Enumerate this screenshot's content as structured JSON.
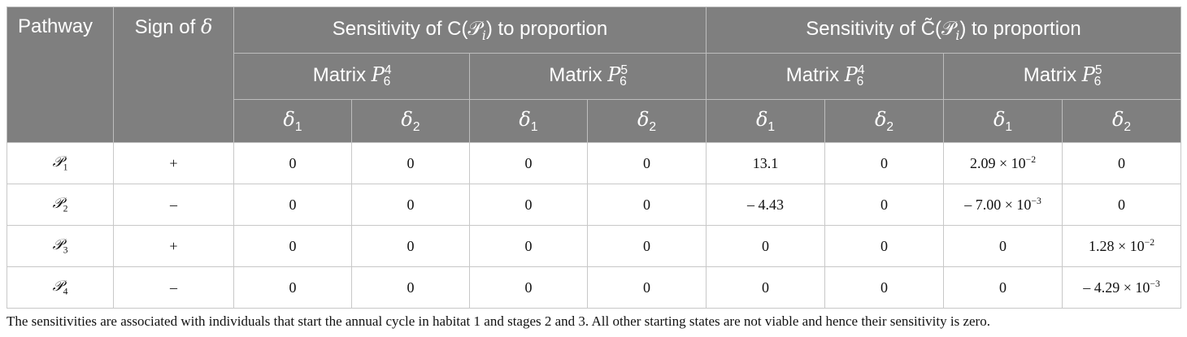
{
  "header": {
    "pathway": "Pathway",
    "sign_of": "Sign of",
    "sign_symbol": "δ",
    "sens_prefix": "Sensitivity of ",
    "sens_c": "C",
    "sens_c_tilde": "C̃",
    "sens_arg": "(𝒫",
    "sens_arg_sub": "i",
    "sens_suffix": ") to proportion",
    "matrix_word": "Matrix ",
    "matrix_p": "P",
    "matrix_sub": "6",
    "matrix_sup_a": "4",
    "matrix_sup_b": "5",
    "delta": "δ",
    "delta_sub_1": "1",
    "delta_sub_2": "2"
  },
  "rows": [
    {
      "p": "𝒫",
      "sub": "1",
      "sign": "+",
      "v": [
        "0",
        "0",
        "0",
        "0",
        "13.1",
        "0",
        "2.09 × 10",
        "0"
      ],
      "exp": [
        "",
        "",
        "",
        "",
        "",
        "",
        "−2",
        ""
      ]
    },
    {
      "p": "𝒫",
      "sub": "2",
      "sign": "–",
      "v": [
        "0",
        "0",
        "0",
        "0",
        "– 4.43",
        "0",
        "– 7.00 × 10",
        "0"
      ],
      "exp": [
        "",
        "",
        "",
        "",
        "",
        "",
        "−3",
        ""
      ]
    },
    {
      "p": "𝒫",
      "sub": "3",
      "sign": "+",
      "v": [
        "0",
        "0",
        "0",
        "0",
        "0",
        "0",
        "0",
        "1.28 × 10"
      ],
      "exp": [
        "",
        "",
        "",
        "",
        "",
        "",
        "",
        "−2"
      ]
    },
    {
      "p": "𝒫",
      "sub": "4",
      "sign": "–",
      "v": [
        "0",
        "0",
        "0",
        "0",
        "0",
        "0",
        "0",
        "– 4.29 × 10"
      ],
      "exp": [
        "",
        "",
        "",
        "",
        "",
        "",
        "",
        "−3"
      ]
    }
  ],
  "footnote": "The sensitivities are associated with individuals that start the annual cycle in habitat 1 and stages 2 and 3. All other starting states are not viable and hence their sensitivity is zero."
}
